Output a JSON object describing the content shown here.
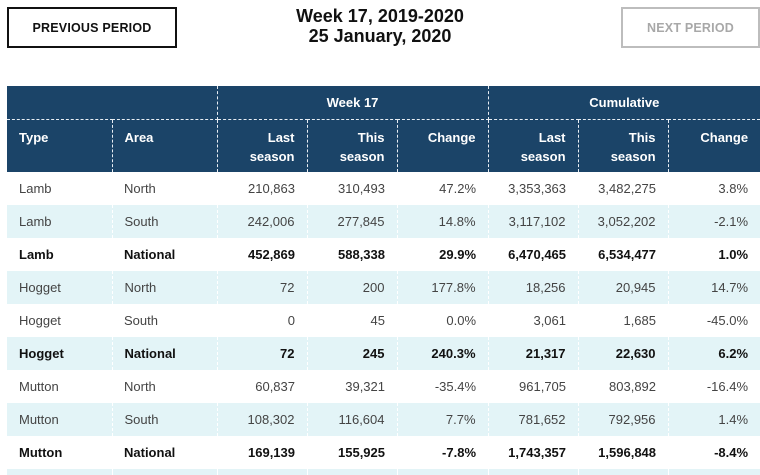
{
  "navigation": {
    "previous_label": "PREVIOUS PERIOD",
    "next_label": "NEXT PERIOD",
    "next_disabled": true
  },
  "header": {
    "title_line1": "Week 17, 2019-2020",
    "title_line2": "25 January, 2020"
  },
  "table": {
    "group_headers": [
      "",
      "Week 17",
      "Cumulative"
    ],
    "columns": [
      {
        "line1": "Type",
        "line2": ""
      },
      {
        "line1": "Area",
        "line2": ""
      },
      {
        "line1": "Last",
        "line2": "season"
      },
      {
        "line1": "This",
        "line2": "season"
      },
      {
        "line1": "Change",
        "line2": ""
      },
      {
        "line1": "Last",
        "line2": "season"
      },
      {
        "line1": "This",
        "line2": "season"
      },
      {
        "line1": "Change",
        "line2": ""
      }
    ],
    "rows": [
      {
        "type": "Lamb",
        "area": "North",
        "wk_last": "210,863",
        "wk_this": "310,493",
        "wk_change": "47.2%",
        "cum_last": "3,353,363",
        "cum_this": "3,482,275",
        "cum_change": "3.8%",
        "bold": false
      },
      {
        "type": "Lamb",
        "area": "South",
        "wk_last": "242,006",
        "wk_this": "277,845",
        "wk_change": "14.8%",
        "cum_last": "3,117,102",
        "cum_this": "3,052,202",
        "cum_change": "-2.1%",
        "bold": false
      },
      {
        "type": "Lamb",
        "area": "National",
        "wk_last": "452,869",
        "wk_this": "588,338",
        "wk_change": "29.9%",
        "cum_last": "6,470,465",
        "cum_this": "6,534,477",
        "cum_change": "1.0%",
        "bold": true
      },
      {
        "type": "Hogget",
        "area": "North",
        "wk_last": "72",
        "wk_this": "200",
        "wk_change": "177.8%",
        "cum_last": "18,256",
        "cum_this": "20,945",
        "cum_change": "14.7%",
        "bold": false
      },
      {
        "type": "Hogget",
        "area": "South",
        "wk_last": "0",
        "wk_this": "45",
        "wk_change": "0.0%",
        "cum_last": "3,061",
        "cum_this": "1,685",
        "cum_change": "-45.0%",
        "bold": false
      },
      {
        "type": "Hogget",
        "area": "National",
        "wk_last": "72",
        "wk_this": "245",
        "wk_change": "240.3%",
        "cum_last": "21,317",
        "cum_this": "22,630",
        "cum_change": "6.2%",
        "bold": true
      },
      {
        "type": "Mutton",
        "area": "North",
        "wk_last": "60,837",
        "wk_this": "39,321",
        "wk_change": "-35.4%",
        "cum_last": "961,705",
        "cum_this": "803,892",
        "cum_change": "-16.4%",
        "bold": false
      },
      {
        "type": "Mutton",
        "area": "South",
        "wk_last": "108,302",
        "wk_this": "116,604",
        "wk_change": "7.7%",
        "cum_last": "781,652",
        "cum_this": "792,956",
        "cum_change": "1.4%",
        "bold": false
      },
      {
        "type": "Mutton",
        "area": "National",
        "wk_last": "169,139",
        "wk_this": "155,925",
        "wk_change": "-7.8%",
        "cum_last": "1,743,357",
        "cum_this": "1,596,848",
        "cum_change": "-8.4%",
        "bold": true
      }
    ]
  }
}
